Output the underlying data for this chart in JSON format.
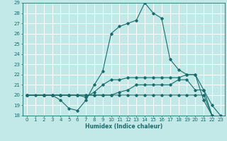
{
  "xlabel": "Humidex (Indice chaleur)",
  "xlim": [
    -0.5,
    23.5
  ],
  "ylim": [
    18,
    29
  ],
  "xticks": [
    0,
    1,
    2,
    3,
    4,
    5,
    6,
    7,
    8,
    9,
    10,
    11,
    12,
    13,
    14,
    15,
    16,
    17,
    18,
    19,
    20,
    21,
    22,
    23
  ],
  "yticks": [
    18,
    19,
    20,
    21,
    22,
    23,
    24,
    25,
    26,
    27,
    28,
    29
  ],
  "bg_color": "#c2e8e8",
  "line_color": "#1a6b6b",
  "grid_color": "#ffffff",
  "lines": [
    {
      "x": [
        0,
        1,
        2,
        3,
        4,
        5,
        6,
        7,
        8,
        9,
        10,
        11,
        12,
        13,
        14,
        15,
        16,
        17,
        18,
        19,
        20,
        21,
        22,
        23
      ],
      "y": [
        20,
        20,
        20,
        20,
        19.5,
        18.7,
        18.5,
        19.5,
        21,
        22.3,
        26,
        26.7,
        27,
        27.3,
        29,
        28,
        27.5,
        23.5,
        22.5,
        22,
        22,
        19.5,
        18,
        17.7
      ]
    },
    {
      "x": [
        0,
        2,
        3,
        4,
        5,
        6,
        7,
        8,
        9,
        10,
        11,
        12,
        13,
        14,
        15,
        16,
        17,
        18,
        19,
        20,
        21,
        22,
        23
      ],
      "y": [
        20,
        20,
        20,
        20,
        20,
        20,
        19.8,
        20.3,
        21,
        21.5,
        21.5,
        21.7,
        21.7,
        21.7,
        21.7,
        21.7,
        21.7,
        21.7,
        22,
        22,
        20.5,
        19.0,
        18.0
      ]
    },
    {
      "x": [
        0,
        2,
        3,
        4,
        5,
        6,
        7,
        8,
        9,
        10,
        11,
        12,
        13,
        14,
        15,
        16,
        17,
        18,
        19,
        20,
        21,
        22,
        23
      ],
      "y": [
        20,
        20,
        20,
        20,
        20,
        20,
        20,
        20,
        20,
        20,
        20.3,
        20.5,
        21,
        21,
        21,
        21,
        21,
        21.5,
        21.5,
        20.5,
        20.5,
        18,
        17.7
      ]
    },
    {
      "x": [
        0,
        2,
        3,
        4,
        5,
        6,
        7,
        8,
        9,
        10,
        11,
        12,
        13,
        14,
        15,
        16,
        17,
        18,
        19,
        20,
        21,
        22,
        23
      ],
      "y": [
        20,
        20,
        20,
        20,
        20,
        20,
        20,
        20,
        20,
        20,
        20,
        20,
        20,
        20,
        20,
        20,
        20,
        20,
        20,
        20,
        20,
        18,
        17.7
      ]
    }
  ]
}
